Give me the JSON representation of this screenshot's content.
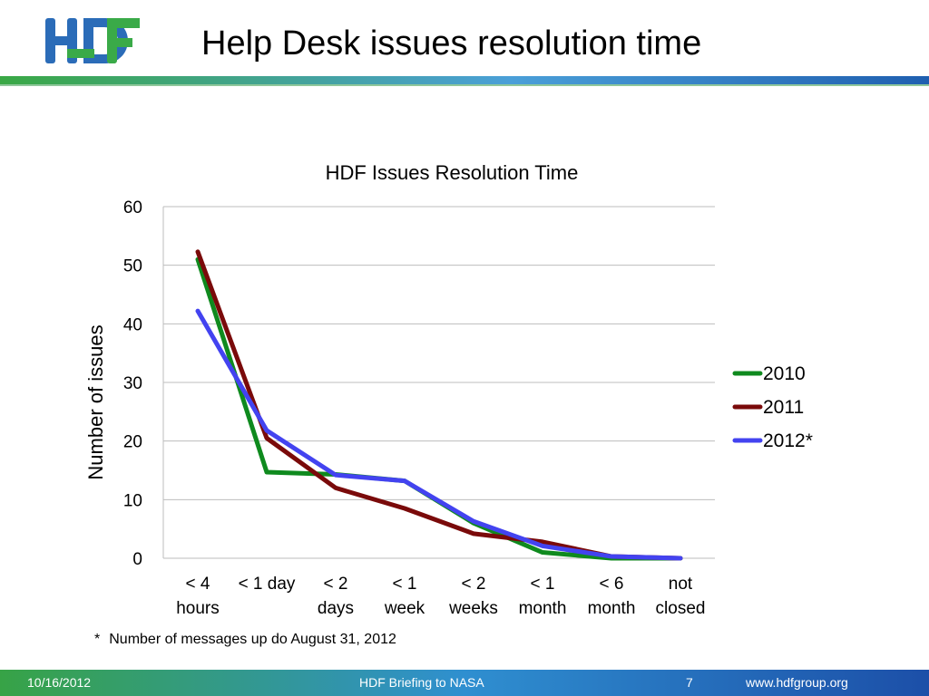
{
  "logo": {
    "text": "HDF",
    "colors": {
      "blue": "#2b6cb8",
      "green": "#3aaa48"
    }
  },
  "slide_title": "Help Desk issues resolution time",
  "chart_data": {
    "type": "line",
    "title": "HDF Issues Resolution Time",
    "xlabel": "",
    "ylabel": "Number of issues",
    "ylim": [
      0,
      60
    ],
    "yticks": [
      0,
      10,
      20,
      30,
      40,
      50,
      60
    ],
    "grid": true,
    "legend_position": "right",
    "categories": [
      [
        "< 4",
        "hours"
      ],
      [
        "< 1 day",
        ""
      ],
      [
        "< 2",
        "days"
      ],
      [
        "< 1",
        "week"
      ],
      [
        "< 2",
        "weeks"
      ],
      [
        "< 1",
        "month"
      ],
      [
        "< 6",
        "month"
      ],
      [
        "not",
        "closed"
      ]
    ],
    "series": [
      {
        "name": "2010",
        "color": "#0f8a1e",
        "values": [
          51,
          14.7,
          14.3,
          13.2,
          6,
          1,
          0,
          0
        ]
      },
      {
        "name": "2011",
        "color": "#7a0a0a",
        "values": [
          52.3,
          20.5,
          12,
          8.5,
          4.2,
          2.8,
          0.3,
          0
        ]
      },
      {
        "name": "2012*",
        "color": "#4343f0",
        "values": [
          42.2,
          21.8,
          14.2,
          13.2,
          6.3,
          2.1,
          0.3,
          0
        ]
      }
    ]
  },
  "footnote": {
    "marker": "*",
    "text": "Number of messages up do August 31, 2012"
  },
  "footer": {
    "date": "10/16/2012",
    "center": "HDF Briefing to NASA",
    "page": "7",
    "url": "www.hdfgroup.org"
  }
}
